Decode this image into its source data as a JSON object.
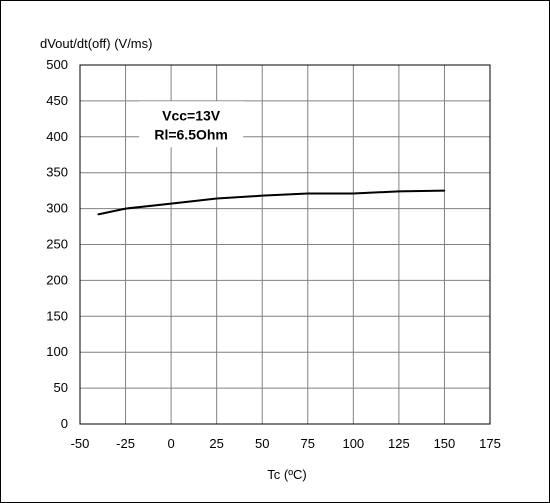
{
  "chart_data": {
    "type": "line",
    "ylabel": "dVout/dt(off) (V/ms)",
    "xlabel": "Tc (ºC)",
    "xlim": [
      -50,
      175
    ],
    "ylim": [
      0,
      500
    ],
    "x_ticks": [
      -50,
      -25,
      0,
      25,
      50,
      75,
      100,
      125,
      150,
      175
    ],
    "y_ticks": [
      0,
      50,
      100,
      150,
      200,
      250,
      300,
      350,
      400,
      450,
      500
    ],
    "grid": true,
    "legend": "none",
    "annotations": [
      "Vcc=13V",
      "Rl=6.5Ohm"
    ],
    "series": [
      {
        "x": [
          -40,
          -25,
          0,
          25,
          50,
          75,
          100,
          125,
          150
        ],
        "values": [
          292,
          300,
          307,
          314,
          318,
          321,
          321,
          324,
          325
        ]
      }
    ],
    "line_color": "#000000"
  }
}
